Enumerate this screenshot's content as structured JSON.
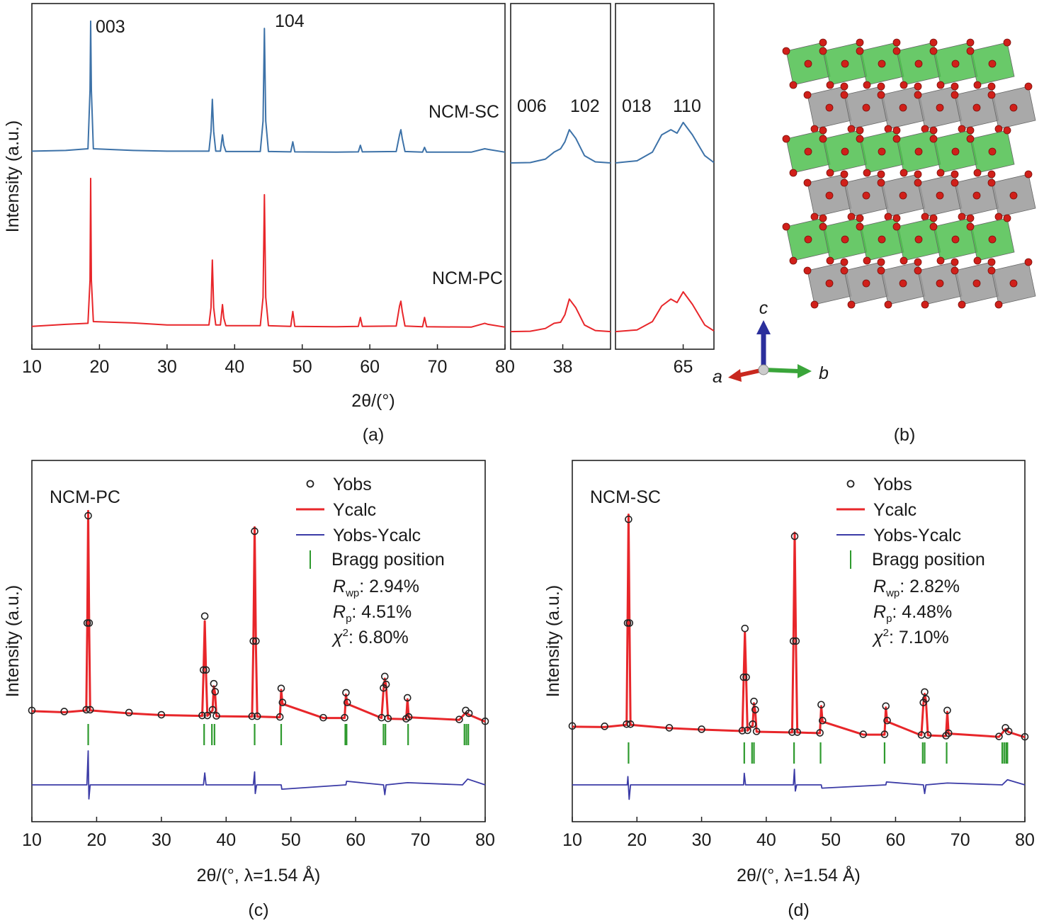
{
  "chart_data": [
    {
      "type": "line",
      "caption": "(a)",
      "xlabel": "2θ/(°)",
      "ylabel": "Intensity (a.u.)",
      "xlim": [
        10,
        80
      ],
      "xticks": [
        10,
        20,
        30,
        40,
        50,
        60,
        70,
        80
      ],
      "ylim": [
        0,
        100
      ],
      "peak_labels": [
        "003",
        "104"
      ],
      "x": [
        10,
        15,
        18.3,
        18.6,
        18.7,
        18.8,
        19.1,
        25,
        30,
        36.2,
        36.5,
        36.7,
        36.9,
        37.2,
        37.9,
        38.2,
        38.4,
        38.7,
        43.8,
        44.2,
        44.4,
        44.6,
        45,
        48.3,
        48.6,
        48.9,
        55,
        58.3,
        58.6,
        58.9,
        63.9,
        64.4,
        64.6,
        64.8,
        65.2,
        67.8,
        68.1,
        68.4,
        75,
        77,
        77.5,
        80
      ],
      "series": [
        {
          "name": "NCM-SC",
          "color": "#3d72a8",
          "values": [
            57.3,
            57.5,
            58,
            75,
            94.9,
            75,
            58,
            57.5,
            57.3,
            57.3,
            63,
            72.3,
            63,
            57.3,
            57.3,
            62,
            59,
            57.2,
            57.2,
            66,
            92.8,
            66,
            57.2,
            57.1,
            60,
            57.1,
            57,
            57.1,
            59,
            57.1,
            57.2,
            62,
            63.5,
            61,
            57.2,
            57,
            58.4,
            57,
            57,
            58,
            57.8,
            57
          ]
        },
        {
          "name": "NCM-PC",
          "color": "#e8262a",
          "values": [
            6.6,
            7.2,
            7.5,
            20,
            49.4,
            20,
            8,
            7.6,
            7,
            7,
            12,
            25.8,
            12,
            7,
            7,
            12.9,
            9,
            6.8,
            6.8,
            15,
            44.7,
            15,
            6.8,
            6.6,
            10.9,
            6.6,
            6.5,
            6.6,
            9.2,
            6.6,
            6.7,
            12.5,
            13.9,
            11,
            6.7,
            6.5,
            9.2,
            6.5,
            6.4,
            7.5,
            7.2,
            6.4
          ]
        }
      ],
      "insets": [
        {
          "xlim": [
            35.6,
            40.2
          ],
          "xticks": [
            38
          ],
          "peak_labels": [
            "006",
            "102"
          ],
          "x": [
            35.6,
            36.5,
            37.2,
            37.6,
            37.9,
            38.1,
            38.3,
            38.6,
            39,
            39.5,
            40.2
          ],
          "series": [
            {
              "values": [
                53.9,
                54,
                55,
                57,
                58,
                60,
                63.5,
                61,
                56,
                54.2,
                53.9
              ]
            },
            {
              "values": [
                5.1,
                5.2,
                6,
                7.5,
                7.8,
                10,
                14.5,
                12,
                7,
                5.4,
                5.1
              ]
            }
          ]
        },
        {
          "xlim": [
            62.8,
            66
          ],
          "xticks": [
            65
          ],
          "peak_labels": [
            "018",
            "110"
          ],
          "x": [
            62.8,
            63.5,
            64,
            64.3,
            64.6,
            64.8,
            65,
            65.3,
            65.7,
            66
          ],
          "series": [
            {
              "values": [
                53.9,
                54.5,
                57,
                62,
                63.5,
                62.5,
                65.6,
                62,
                56,
                54
              ]
            },
            {
              "values": [
                5.1,
                5.6,
                8,
                12.5,
                14.5,
                13.5,
                16.6,
                13,
                7,
                5.3
              ]
            }
          ]
        }
      ]
    },
    {
      "type": "rietveld",
      "caption": "(c)",
      "title": "NCM-PC",
      "xlabel": "2θ/(°, λ=1.54 Å)",
      "ylabel": "Intensity (a.u.)",
      "xlim": [
        10,
        80
      ],
      "xticks": [
        10,
        20,
        30,
        40,
        50,
        60,
        70,
        80
      ],
      "ylim": [
        0,
        100
      ],
      "x": [
        10,
        15,
        18.4,
        18.55,
        18.7,
        18.85,
        19,
        25,
        30,
        36.3,
        36.5,
        36.7,
        36.9,
        37.1,
        37.9,
        38.1,
        38.3,
        38.5,
        44,
        44.2,
        44.4,
        44.6,
        44.8,
        48.3,
        48.5,
        48.7,
        55,
        58.3,
        58.5,
        58.7,
        64,
        64.3,
        64.5,
        64.7,
        65,
        67.8,
        68,
        68.2,
        76,
        77,
        77.5,
        80
      ],
      "series": [
        {
          "name": "Yobs",
          "color": "#222222",
          "values": [
            30.8,
            30.5,
            31,
            55,
            84.7,
            55,
            31,
            30.2,
            29.6,
            29.4,
            42,
            56.9,
            42,
            29.4,
            31,
            38.2,
            36,
            29.3,
            29.2,
            50,
            80.4,
            50,
            29.2,
            29,
            36.9,
            33,
            28.8,
            28.8,
            35.7,
            33,
            28.8,
            37,
            40.2,
            38,
            28.6,
            28.5,
            34.3,
            29,
            28.3,
            30.8,
            30,
            27.8
          ]
        },
        {
          "name": "Ycalc",
          "color": "#e8262a",
          "values": [
            30.6,
            30.3,
            30.8,
            54,
            86,
            54,
            30.8,
            30,
            29.5,
            29.3,
            41,
            55.5,
            41,
            29.3,
            30.8,
            37.5,
            35.5,
            29.2,
            29.1,
            49,
            81.5,
            49,
            29.1,
            28.9,
            36.5,
            32.6,
            28.7,
            28.7,
            35.2,
            32.6,
            28.7,
            36.6,
            39.6,
            37.6,
            28.5,
            28.4,
            33.9,
            28.9,
            28.2,
            30.2,
            29.6,
            27.7
          ]
        }
      ],
      "difference": {
        "name": "Yobs-Ycalc",
        "color": "#3b3ba6",
        "x": [
          10,
          18.5,
          18.7,
          18.8,
          19,
          36.5,
          36.7,
          36.9,
          44.2,
          44.4,
          44.5,
          44.7,
          48.5,
          48.6,
          58.5,
          58.6,
          64.3,
          64.5,
          64.7,
          68,
          76.5,
          77.3,
          80
        ],
        "values": [
          10.2,
          10.2,
          19.6,
          6.3,
          10.2,
          10.2,
          13.5,
          10.2,
          10.2,
          13.8,
          7.8,
          10.2,
          10.2,
          9,
          10.2,
          11.2,
          10.2,
          7.5,
          10.2,
          10.8,
          10.2,
          11.8,
          10.2
        ]
      },
      "bragg": {
        "name": "Bragg position",
        "color": "#2e9a2e",
        "x": [
          18.7,
          36.6,
          37.8,
          38.2,
          44.4,
          48.5,
          58.4,
          58.6,
          64.3,
          64.6,
          68.1,
          76.8,
          77.1,
          77.4
        ]
      },
      "stats": [
        {
          "symbol": "R",
          "subscript": "wp",
          "text": ": 2.94%"
        },
        {
          "symbol": "R",
          "subscript": "p",
          "text": ": 4.51%"
        },
        {
          "symbol": "χ",
          "superscript": "2",
          "text": ": 6.80%"
        }
      ]
    },
    {
      "type": "rietveld",
      "caption": "(d)",
      "title": "NCM-SC",
      "xlabel": "2θ/(°, λ=1.54 Å)",
      "ylabel": "Intensity (a.u.)",
      "xlim": [
        10,
        80
      ],
      "xticks": [
        10,
        20,
        30,
        40,
        50,
        60,
        70,
        80
      ],
      "ylim": [
        0,
        100
      ],
      "x": [
        10,
        15,
        18.4,
        18.55,
        18.7,
        18.85,
        19,
        25,
        30,
        36.3,
        36.5,
        36.7,
        36.9,
        37.1,
        37.9,
        38.1,
        38.3,
        38.5,
        44,
        44.2,
        44.4,
        44.6,
        44.8,
        48.3,
        48.5,
        48.7,
        55,
        58.3,
        58.5,
        58.7,
        64,
        64.3,
        64.5,
        64.7,
        65,
        67.8,
        68,
        68.2,
        76,
        77,
        77.5,
        80
      ],
      "series": [
        {
          "name": "Yobs",
          "color": "#222222",
          "values": [
            26.5,
            26.4,
            27,
            55,
            83.7,
            55,
            27,
            26,
            25.6,
            25.2,
            40,
            53.5,
            40,
            25.3,
            27,
            33.3,
            31,
            25,
            24.8,
            50,
            79,
            50,
            24.8,
            24.6,
            32.4,
            28,
            24.2,
            24.2,
            32,
            28,
            24,
            33,
            35.9,
            34,
            24,
            23.8,
            30.8,
            24.5,
            23.6,
            26,
            25,
            23.5
          ]
        },
        {
          "name": "Ycalc",
          "color": "#e8262a",
          "values": [
            26.3,
            26.2,
            26.8,
            54,
            85,
            54,
            26.8,
            25.9,
            25.5,
            25.1,
            39,
            52.5,
            39,
            25.2,
            26.7,
            32.8,
            30.6,
            24.9,
            24.7,
            49,
            80,
            49,
            24.7,
            24.5,
            32,
            27.7,
            24.1,
            24.1,
            31.6,
            27.7,
            23.9,
            32.6,
            35.4,
            33.6,
            23.9,
            23.7,
            30.4,
            24.4,
            23.5,
            25.6,
            24.8,
            23.4
          ]
        }
      ],
      "difference": {
        "name": "Yobs-Ycalc",
        "color": "#3b3ba6",
        "x": [
          10,
          18.5,
          18.6,
          18.8,
          19,
          36.5,
          36.6,
          36.8,
          44.2,
          44.35,
          44.5,
          44.7,
          48.5,
          48.6,
          58.5,
          58.6,
          64.3,
          64.5,
          64.7,
          68,
          76.5,
          77.3,
          80
        ],
        "values": [
          10.2,
          10.2,
          12.5,
          6.2,
          10.2,
          10.2,
          13.4,
          10.2,
          10.2,
          14.5,
          8.5,
          10.2,
          10.2,
          9.3,
          10.2,
          11,
          10.2,
          7.8,
          10.2,
          10.7,
          10.2,
          11.6,
          10.2
        ]
      },
      "bragg": {
        "name": "Bragg position",
        "color": "#2e9a2e",
        "x": [
          18.7,
          36.6,
          37.8,
          38.1,
          44.3,
          48.4,
          58.3,
          64.2,
          64.5,
          67.9,
          76.5,
          76.8,
          77.1,
          77.3
        ]
      },
      "stats": [
        {
          "symbol": "R",
          "subscript": "wp",
          "text": ": 2.82%"
        },
        {
          "symbol": "R",
          "subscript": "p",
          "text": ": 4.48%"
        },
        {
          "symbol": "χ",
          "superscript": "2",
          "text": ": 7.10%"
        }
      ]
    }
  ],
  "structure": {
    "caption": "(b)",
    "axis_labels": [
      "c",
      "a",
      "b"
    ]
  }
}
